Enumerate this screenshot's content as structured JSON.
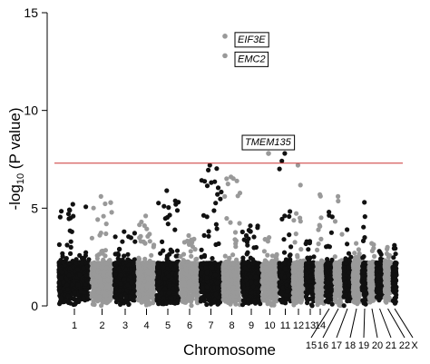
{
  "chart_data": {
    "type": "scatter",
    "title": "",
    "xlabel": "Chromosome",
    "ylabel_main": "-log",
    "ylabel_sub": "10",
    "ylabel_rest": " (P value)",
    "ylim": [
      0,
      15
    ],
    "yticks": [
      0,
      5,
      10,
      15
    ],
    "grid": false,
    "significance_threshold": 7.3,
    "threshold_color": "#cc3333",
    "colors": {
      "odd": "#111111",
      "even": "#999999"
    },
    "chromosomes": [
      "1",
      "2",
      "3",
      "4",
      "5",
      "6",
      "7",
      "8",
      "9",
      "10",
      "11",
      "12",
      "13",
      "14",
      "15",
      "16",
      "17",
      "18",
      "19",
      "20",
      "21",
      "22",
      "X"
    ],
    "chromosome_peaks": [
      5.2,
      5.6,
      3.8,
      4.6,
      5.9,
      3.6,
      7.2,
      6.6,
      4.1,
      3.5,
      7.8,
      7.2,
      3.3,
      5.7,
      4.8,
      5.6,
      3.9,
      3.2,
      5.3,
      3.2,
      2.8,
      3.0,
      3.1
    ],
    "highlighted_genes": [
      {
        "label": "EIF3E",
        "chromosome": "8",
        "y": 13.8
      },
      {
        "label": "EMC2",
        "chromosome": "8",
        "y": 12.8
      },
      {
        "label": "TMEM135",
        "chromosome": "11",
        "y": 7.8
      }
    ]
  }
}
